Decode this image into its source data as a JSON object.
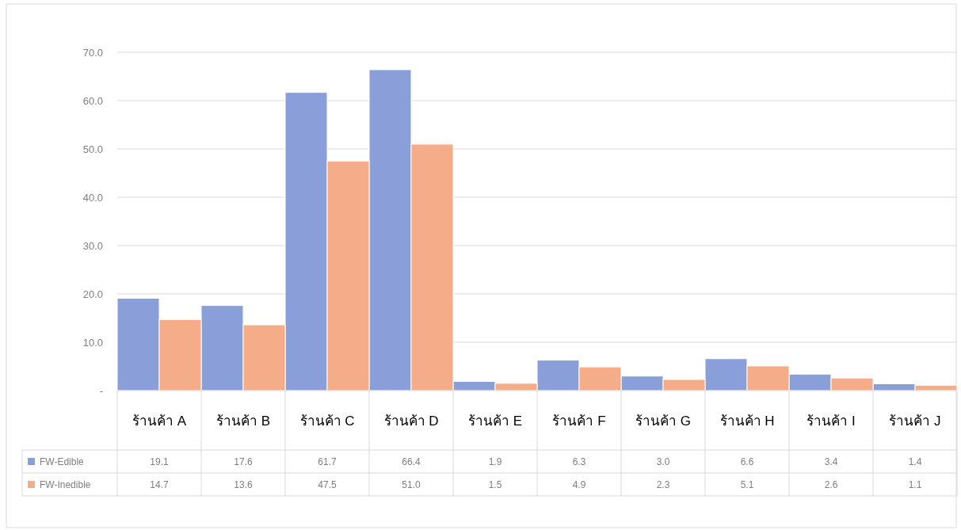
{
  "chart_data": {
    "type": "bar",
    "categories": [
      "ร้านค้า A",
      "ร้านค้า B",
      "ร้านค้า C",
      "ร้านค้า D",
      "ร้านค้า E",
      "ร้านค้า F",
      "ร้านค้า G",
      "ร้านค้า H",
      "ร้านค้า I",
      "ร้านค้า J"
    ],
    "series": [
      {
        "name": "FW-Edible",
        "color": "#8a9fda",
        "values": [
          19.1,
          17.6,
          61.7,
          66.4,
          1.9,
          6.3,
          3.0,
          6.6,
          3.4,
          1.4
        ],
        "value_labels": [
          "19.1",
          "17.6",
          "61.7",
          "66.4",
          "1.9",
          "6.3",
          "3.0",
          "6.6",
          "3.4",
          "1.4"
        ]
      },
      {
        "name": "FW-Inedible",
        "color": "#f5ac88",
        "values": [
          14.7,
          13.6,
          47.5,
          51.0,
          1.5,
          4.9,
          2.3,
          5.1,
          2.6,
          1.1
        ],
        "value_labels": [
          "14.7",
          "13.6",
          "47.5",
          "51.0",
          "1.5",
          "4.9",
          "2.3",
          "5.1",
          "2.6",
          "1.1"
        ]
      }
    ],
    "ylim": [
      0,
      70
    ],
    "yticks": [
      {
        "value": 0,
        "label": "-"
      },
      {
        "value": 10,
        "label": "10.0"
      },
      {
        "value": 20,
        "label": "20.0"
      },
      {
        "value": 30,
        "label": "30.0"
      },
      {
        "value": 40,
        "label": "40.0"
      },
      {
        "value": 50,
        "label": "50.0"
      },
      {
        "value": 60,
        "label": "60.0"
      },
      {
        "value": 70,
        "label": "70.0"
      }
    ],
    "grid": "y",
    "legend": "bottom"
  }
}
